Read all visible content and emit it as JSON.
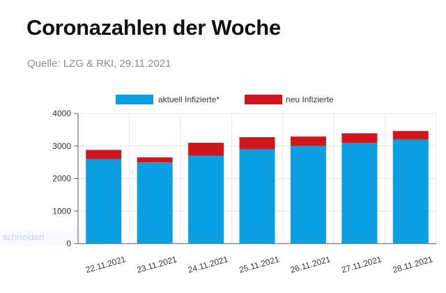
{
  "header": {
    "title": "Coronazahlen der Woche",
    "subtitle": "Quelle: LZG & RKI, 29.11.2021"
  },
  "overlay": {
    "ghost_text": "schneiden"
  },
  "chart_data": {
    "type": "bar",
    "stacked": true,
    "categories": [
      "22.11.2021",
      "23.11.2021",
      "24.11.2021",
      "25.11.2021",
      "26.11.2021",
      "27.11.2021",
      "28.11.2021"
    ],
    "series": [
      {
        "name": "aktuell Infizierte*",
        "color": "#0b9ee0",
        "values": [
          2600,
          2500,
          2700,
          2900,
          3000,
          3100,
          3200
        ]
      },
      {
        "name": "neu Infizierte",
        "color": "#d0161d",
        "values": [
          280,
          150,
          400,
          370,
          290,
          290,
          260
        ]
      }
    ],
    "ylim": [
      0,
      4000
    ],
    "yticks": [
      0,
      1000,
      2000,
      3000,
      4000
    ],
    "grid": true,
    "legend": "top-center"
  }
}
